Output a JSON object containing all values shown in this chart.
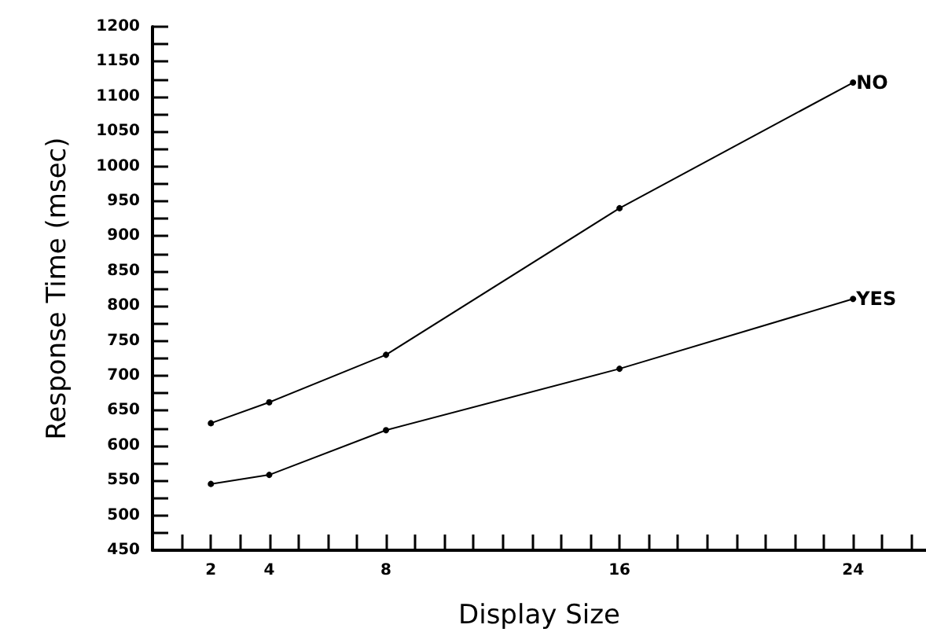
{
  "chart_data": {
    "type": "line",
    "xlabel": "Display Size",
    "ylabel": "Response Time (msec)",
    "x": [
      2,
      4,
      8,
      16,
      24
    ],
    "series": [
      {
        "name": "NO",
        "color": "#000000",
        "values": [
          632,
          662,
          730,
          940,
          1120
        ]
      },
      {
        "name": "YES",
        "color": "#000000",
        "values": [
          545,
          558,
          622,
          710,
          810
        ]
      }
    ],
    "xlim": [
      0,
      26.5
    ],
    "xticks": [
      {
        "value": 1,
        "label": null
      },
      2,
      {
        "value": 3,
        "label": null
      },
      4,
      {
        "value": 5,
        "label": null
      },
      {
        "value": 6,
        "label": null
      },
      {
        "value": 7,
        "label": null
      },
      8,
      {
        "value": 9,
        "label": null
      },
      {
        "value": 10,
        "label": null
      },
      {
        "value": 11,
        "label": null
      },
      {
        "value": 12,
        "label": null
      },
      {
        "value": 13,
        "label": null
      },
      {
        "value": 14,
        "label": null
      },
      {
        "value": 15,
        "label": null
      },
      16,
      {
        "value": 17,
        "label": null
      },
      {
        "value": 18,
        "label": null
      },
      {
        "value": 19,
        "label": null
      },
      {
        "value": 20,
        "label": null
      },
      {
        "value": 21,
        "label": null
      },
      {
        "value": 22,
        "label": null
      },
      {
        "value": 23,
        "label": null
      },
      24,
      {
        "value": 25,
        "label": null
      },
      {
        "value": 26,
        "label": null
      }
    ],
    "ylim": [
      450,
      1200
    ],
    "yticks": [
      450,
      {
        "value": 475,
        "label": null
      },
      500,
      {
        "value": 525,
        "label": null
      },
      550,
      {
        "value": 575,
        "label": null
      },
      600,
      {
        "value": 625,
        "label": null
      },
      650,
      {
        "value": 675,
        "label": null
      },
      700,
      {
        "value": 725,
        "label": null
      },
      750,
      {
        "value": 775,
        "label": null
      },
      800,
      {
        "value": 825,
        "label": null
      },
      850,
      {
        "value": 875,
        "label": null
      },
      900,
      {
        "value": 925,
        "label": null
      },
      950,
      {
        "value": 975,
        "label": null
      },
      1000,
      {
        "value": 1025,
        "label": null
      },
      1050,
      {
        "value": 1075,
        "label": null
      },
      1100,
      {
        "value": 1125,
        "label": null
      },
      1150,
      {
        "value": 1175,
        "label": null
      },
      1200
    ],
    "grid": false,
    "legend": false,
    "marker": "circle",
    "line_style": "solid"
  }
}
